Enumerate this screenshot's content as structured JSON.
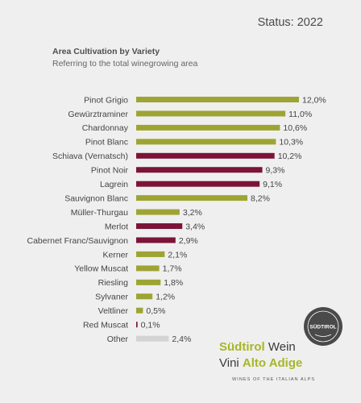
{
  "status": "Status: 2022",
  "chart_data": {
    "type": "bar",
    "orientation": "horizontal",
    "title": "Area Cultivation by Variety",
    "subtitle": "Referring to the total winegrowing area",
    "categories": [
      "Pinot Grigio",
      "Gewürztraminer",
      "Chardonnay",
      "Pinot Blanc",
      "Schiava (Vernatsch)",
      "Pinot Noir",
      "Lagrein",
      "Sauvignon Blanc",
      "Müller-Thurgau",
      "Merlot",
      "Cabernet Franc/Sauvignon",
      "Kerner",
      "Yellow Muscat",
      "Riesling",
      "Sylvaner",
      "Veltliner",
      "Red Muscat",
      "Other"
    ],
    "values": [
      12.0,
      11.0,
      10.6,
      10.3,
      10.2,
      9.3,
      9.1,
      8.2,
      3.2,
      3.4,
      2.9,
      2.1,
      1.7,
      1.8,
      1.2,
      0.5,
      0.1,
      2.4
    ],
    "value_labels": [
      "12,0%",
      "11,0%",
      "10,6%",
      "10,3%",
      "10,2%",
      "9,3%",
      "9,1%",
      "8,2%",
      "3,2%",
      "3,4%",
      "2,9%",
      "2,1%",
      "1,7%",
      "1,8%",
      "1,2%",
      "0,5%",
      "0,1%",
      "2,4%"
    ],
    "bar_types": [
      "white",
      "white",
      "white",
      "white",
      "red",
      "red",
      "red",
      "white",
      "white",
      "red",
      "red",
      "white",
      "white",
      "white",
      "white",
      "white",
      "red",
      "other"
    ],
    "colors": {
      "white": "#9ea433",
      "red": "#7b1438",
      "other": "#d3d3d3"
    },
    "xlim": [
      0,
      12.0
    ],
    "grid": false,
    "legend": "none"
  },
  "logo": {
    "word1": "Südtirol",
    "word2": " Wein",
    "word3": "Vini ",
    "word4": "Alto Adige",
    "tagline": "WINES OF THE ITALIAN ALPS",
    "seal_text": "SÜDTIROL"
  }
}
